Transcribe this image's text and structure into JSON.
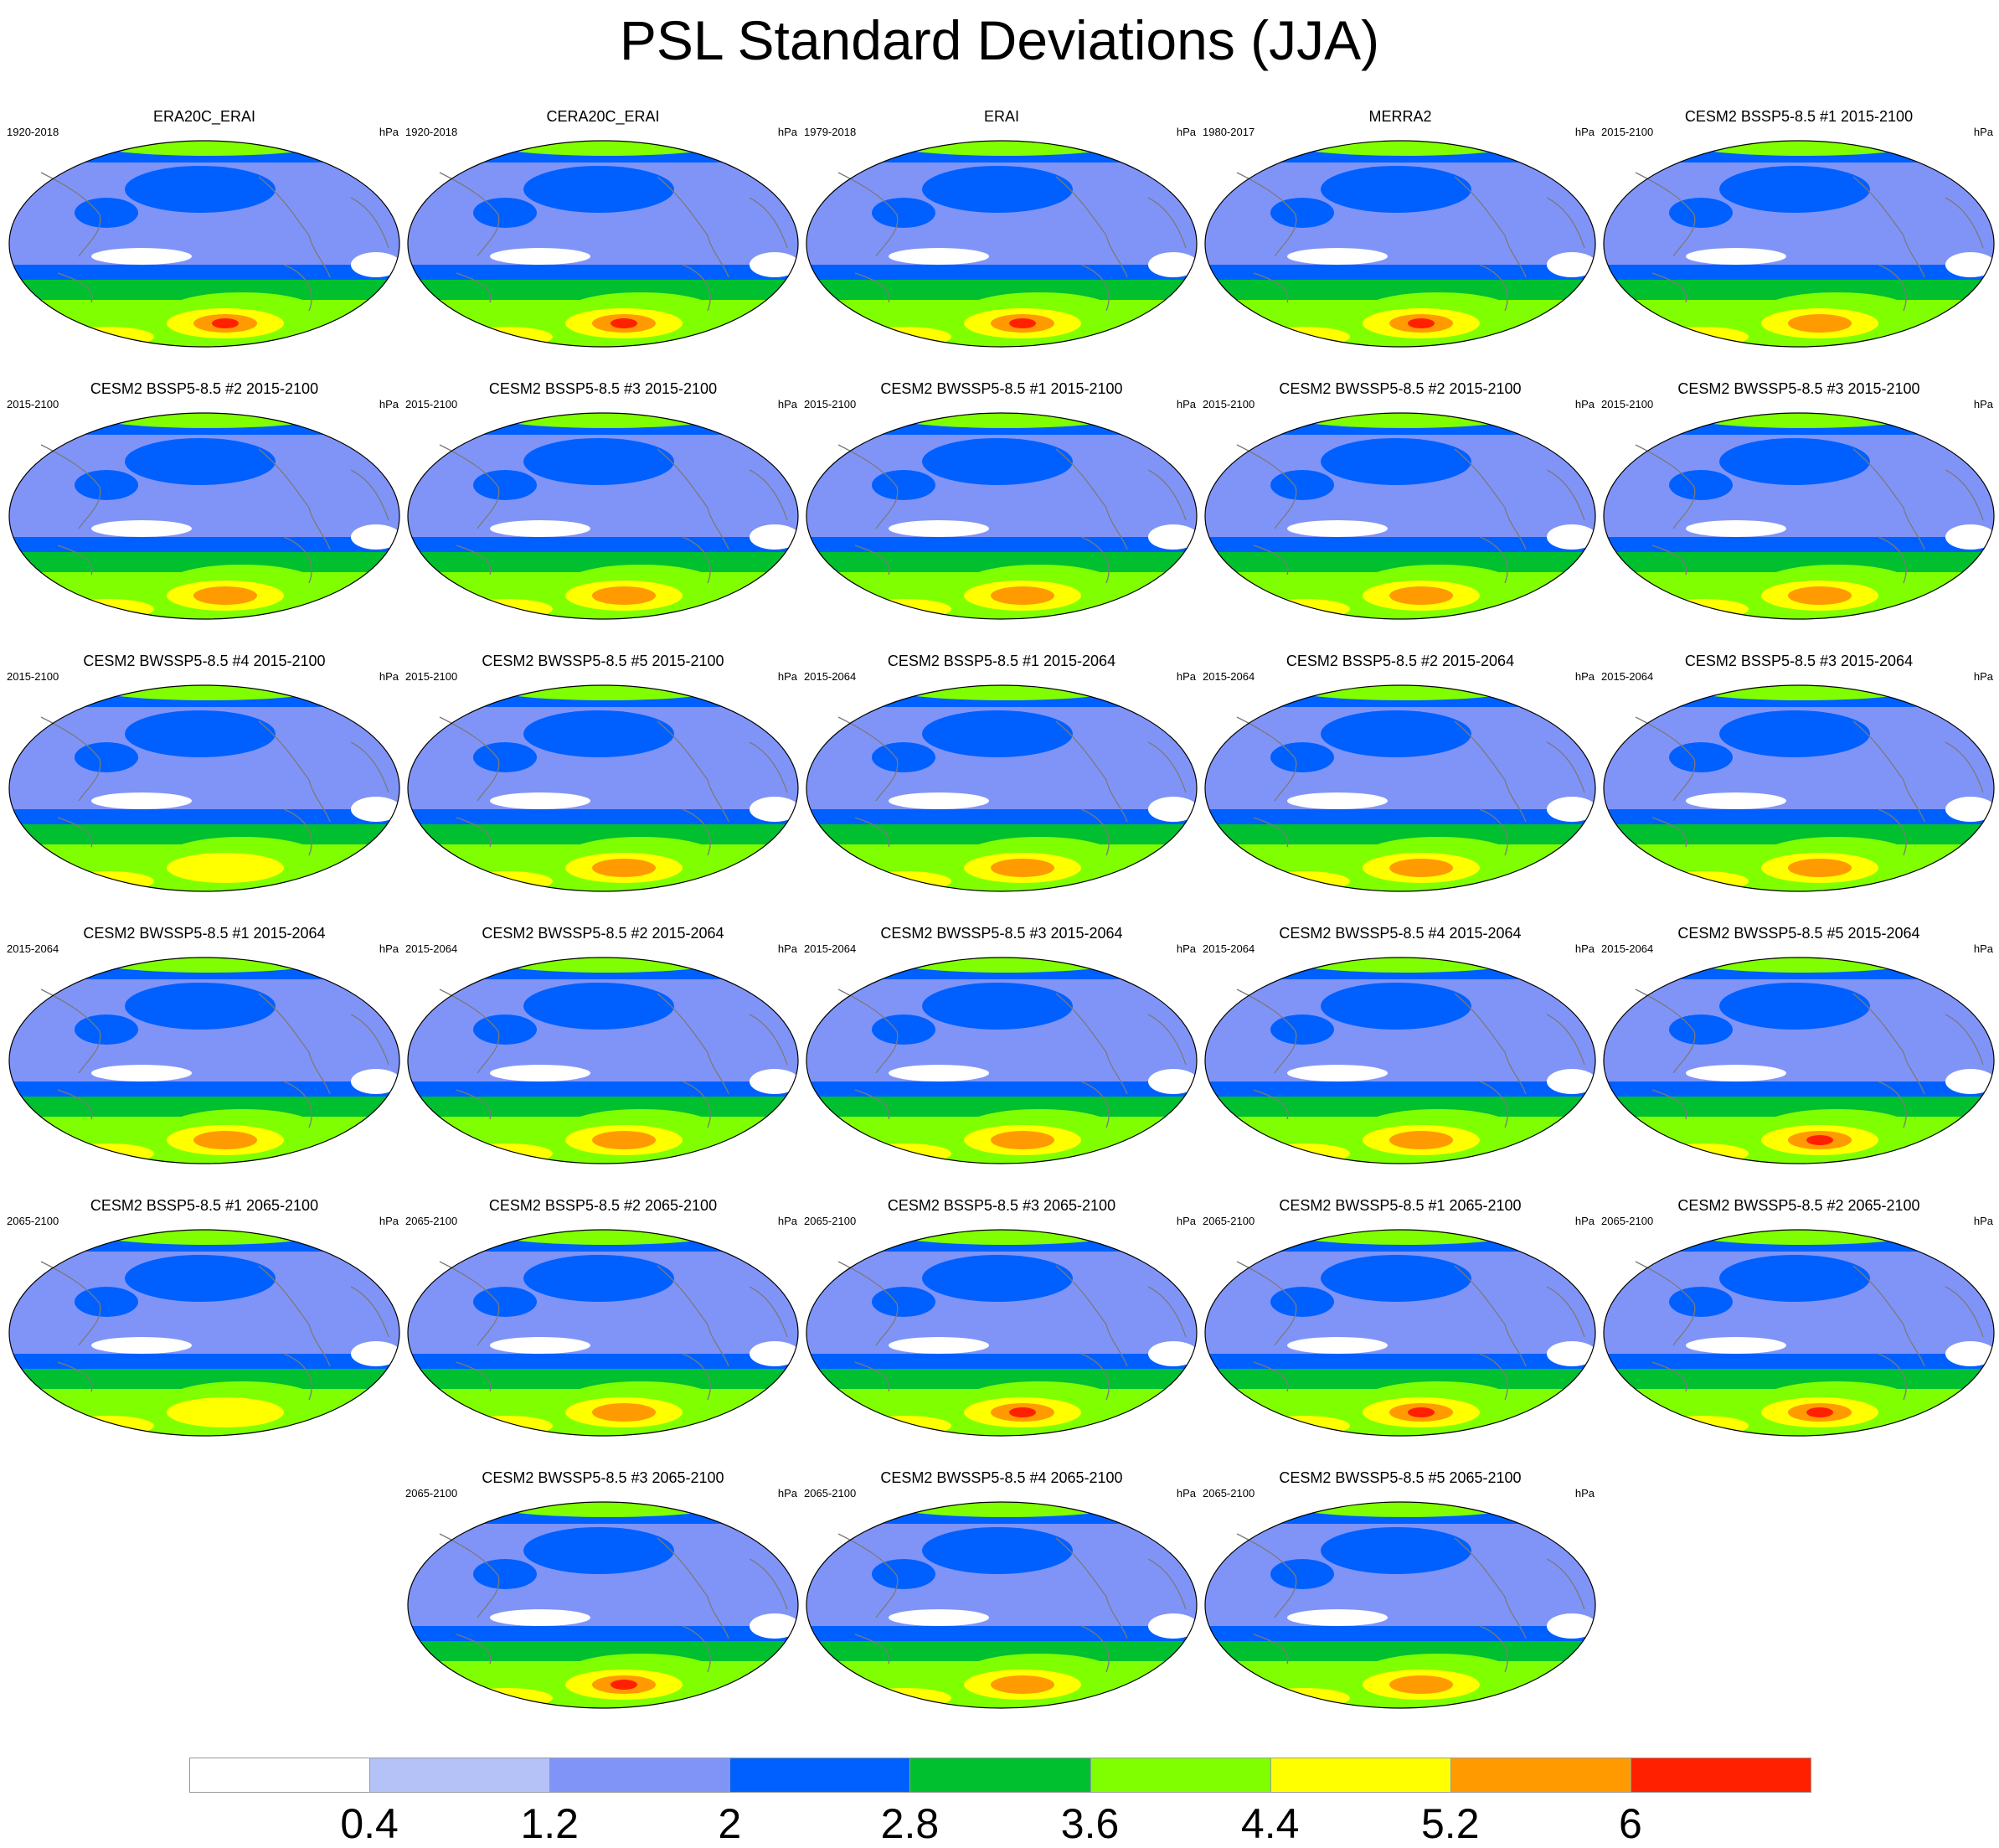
{
  "chart_data": {
    "type": "heatmap",
    "title": "PSL Standard Deviations (JJA)",
    "projection": "Robinson (Pacific-centred)",
    "variable": "PSL",
    "units": "hPa",
    "colorbar": {
      "levels": [
        0.4,
        1.2,
        2,
        2.8,
        3.6,
        4.4,
        5.2,
        6
      ],
      "tick_labels": [
        "0.4",
        "1.2",
        "2",
        "2.8",
        "3.6",
        "4.4",
        "5.2",
        "6"
      ],
      "colors": [
        "#ffffff",
        "#b4c2f8",
        "#8094f8",
        "#0060ff",
        "#00c030",
        "#80ff00",
        "#ffff00",
        "#ff9a00",
        "#ff2000"
      ]
    },
    "panels": [
      {
        "title": "ERA20C_ERAI",
        "period": "1920-2018",
        "units": "hPa",
        "south_max": 6.4
      },
      {
        "title": "CERA20C_ERAI",
        "period": "1920-2018",
        "units": "hPa",
        "south_max": 6.2
      },
      {
        "title": "ERAI",
        "period": "1979-2018",
        "units": "hPa",
        "south_max": 6.3
      },
      {
        "title": "MERRA2",
        "period": "1980-2017",
        "units": "hPa",
        "south_max": 6.2
      },
      {
        "title": "CESM2 BSSP5-8.5 #1 2015-2100",
        "period": "2015-2100",
        "units": "hPa",
        "south_max": 5.4
      },
      {
        "title": "CESM2 BSSP5-8.5 #2 2015-2100",
        "period": "2015-2100",
        "units": "hPa",
        "south_max": 5.5
      },
      {
        "title": "CESM2 BSSP5-8.5 #3 2015-2100",
        "period": "2015-2100",
        "units": "hPa",
        "south_max": 5.6
      },
      {
        "title": "CESM2 BWSSP5-8.5 #1 2015-2100",
        "period": "2015-2100",
        "units": "hPa",
        "south_max": 5.6
      },
      {
        "title": "CESM2 BWSSP5-8.5 #2 2015-2100",
        "period": "2015-2100",
        "units": "hPa",
        "south_max": 5.5
      },
      {
        "title": "CESM2 BWSSP5-8.5 #3 2015-2100",
        "period": "2015-2100",
        "units": "hPa",
        "south_max": 5.6
      },
      {
        "title": "CESM2 BWSSP5-8.5 #4 2015-2100",
        "period": "2015-2100",
        "units": "hPa",
        "south_max": 5.0
      },
      {
        "title": "CESM2 BWSSP5-8.5 #5 2015-2100",
        "period": "2015-2100",
        "units": "hPa",
        "south_max": 5.6
      },
      {
        "title": "CESM2 BSSP5-8.5 #1 2015-2064",
        "period": "2015-2064",
        "units": "hPa",
        "south_max": 5.6
      },
      {
        "title": "CESM2 BSSP5-8.5 #2 2015-2064",
        "period": "2015-2064",
        "units": "hPa",
        "south_max": 5.6
      },
      {
        "title": "CESM2 BSSP5-8.5 #3 2015-2064",
        "period": "2015-2064",
        "units": "hPa",
        "south_max": 5.5
      },
      {
        "title": "CESM2 BWSSP5-8.5 #1 2015-2064",
        "period": "2015-2064",
        "units": "hPa",
        "south_max": 5.3
      },
      {
        "title": "CESM2 BWSSP5-8.5 #2 2015-2064",
        "period": "2015-2064",
        "units": "hPa",
        "south_max": 5.5
      },
      {
        "title": "CESM2 BWSSP5-8.5 #3 2015-2064",
        "period": "2015-2064",
        "units": "hPa",
        "south_max": 5.5
      },
      {
        "title": "CESM2 BWSSP5-8.5 #4 2015-2064",
        "period": "2015-2064",
        "units": "hPa",
        "south_max": 5.4
      },
      {
        "title": "CESM2 BWSSP5-8.5 #5 2015-2064",
        "period": "2015-2064",
        "units": "hPa",
        "south_max": 6.3
      },
      {
        "title": "CESM2 BSSP5-8.5 #1 2065-2100",
        "period": "2065-2100",
        "units": "hPa",
        "south_max": 4.8
      },
      {
        "title": "CESM2 BSSP5-8.5 #2 2065-2100",
        "period": "2065-2100",
        "units": "hPa",
        "south_max": 5.5
      },
      {
        "title": "CESM2 BSSP5-8.5 #3 2065-2100",
        "period": "2065-2100",
        "units": "hPa",
        "south_max": 6.2
      },
      {
        "title": "CESM2 BWSSP5-8.5 #1 2065-2100",
        "period": "2065-2100",
        "units": "hPa",
        "south_max": 6.2
      },
      {
        "title": "CESM2 BWSSP5-8.5 #2 2065-2100",
        "period": "2065-2100",
        "units": "hPa",
        "south_max": 6.1
      },
      {
        "title": "CESM2 BWSSP5-8.5 #3 2065-2100",
        "period": "2065-2100",
        "units": "hPa",
        "south_max": 6.1
      },
      {
        "title": "CESM2 BWSSP5-8.5 #4 2065-2100",
        "period": "2065-2100",
        "units": "hPa",
        "south_max": 5.3
      },
      {
        "title": "CESM2 BWSSP5-8.5 #5 2065-2100",
        "period": "2065-2100",
        "units": "hPa",
        "south_max": 5.4
      }
    ]
  }
}
